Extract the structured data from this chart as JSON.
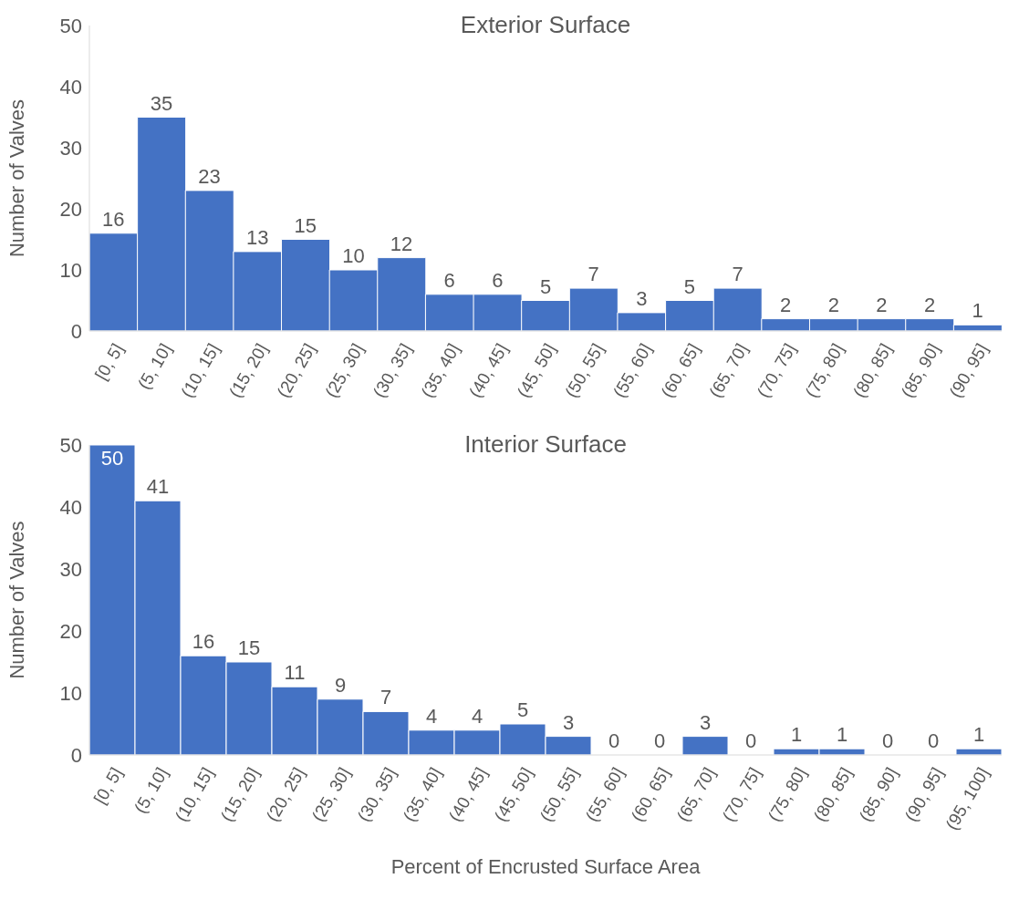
{
  "chart_data": [
    {
      "type": "bar",
      "title": "Exterior Surface",
      "ylabel": "Number of Valves",
      "categories": [
        "[0, 5]",
        "(5, 10]",
        "(10, 15]",
        "(15, 20]",
        "(20, 25]",
        "(25, 30]",
        "(30, 35]",
        "(35, 40]",
        "(40, 45]",
        "(45, 50]",
        "(50, 55]",
        "(55, 60]",
        "(60, 65]",
        "(65, 70]",
        "(70, 75]",
        "(75, 80]",
        "(80, 85]",
        "(85, 90]",
        "(90, 95]"
      ],
      "values": [
        16,
        35,
        23,
        13,
        15,
        10,
        12,
        6,
        6,
        5,
        7,
        3,
        5,
        7,
        2,
        2,
        2,
        2,
        1
      ],
      "color": "#4472c4",
      "ylim": [
        0,
        50
      ],
      "yticks": [
        0,
        10,
        20,
        30,
        40,
        50
      ],
      "grid": false,
      "legend": false,
      "data_labels": true
    },
    {
      "type": "bar",
      "title": "Interior Surface",
      "ylabel": "Number of Valves",
      "xlabel": "Percent of Encrusted Surface Area",
      "categories": [
        "[0, 5]",
        "(5, 10]",
        "(10, 15]",
        "(15, 20]",
        "(20, 25]",
        "(25, 30]",
        "(30, 35]",
        "(35, 40]",
        "(40, 45]",
        "(45, 50]",
        "(50, 55]",
        "(55, 60]",
        "(60, 65]",
        "(65, 70]",
        "(70, 75]",
        "(75, 80]",
        "(80, 85]",
        "(85, 90]",
        "(90, 95]",
        "(95, 100]"
      ],
      "values": [
        50,
        41,
        16,
        15,
        11,
        9,
        7,
        4,
        4,
        5,
        3,
        0,
        0,
        3,
        0,
        1,
        1,
        0,
        0,
        1
      ],
      "color": "#4472c4",
      "ylim": [
        0,
        50
      ],
      "yticks": [
        0,
        10,
        20,
        30,
        40,
        50
      ],
      "grid": false,
      "legend": false,
      "data_labels": true
    }
  ]
}
